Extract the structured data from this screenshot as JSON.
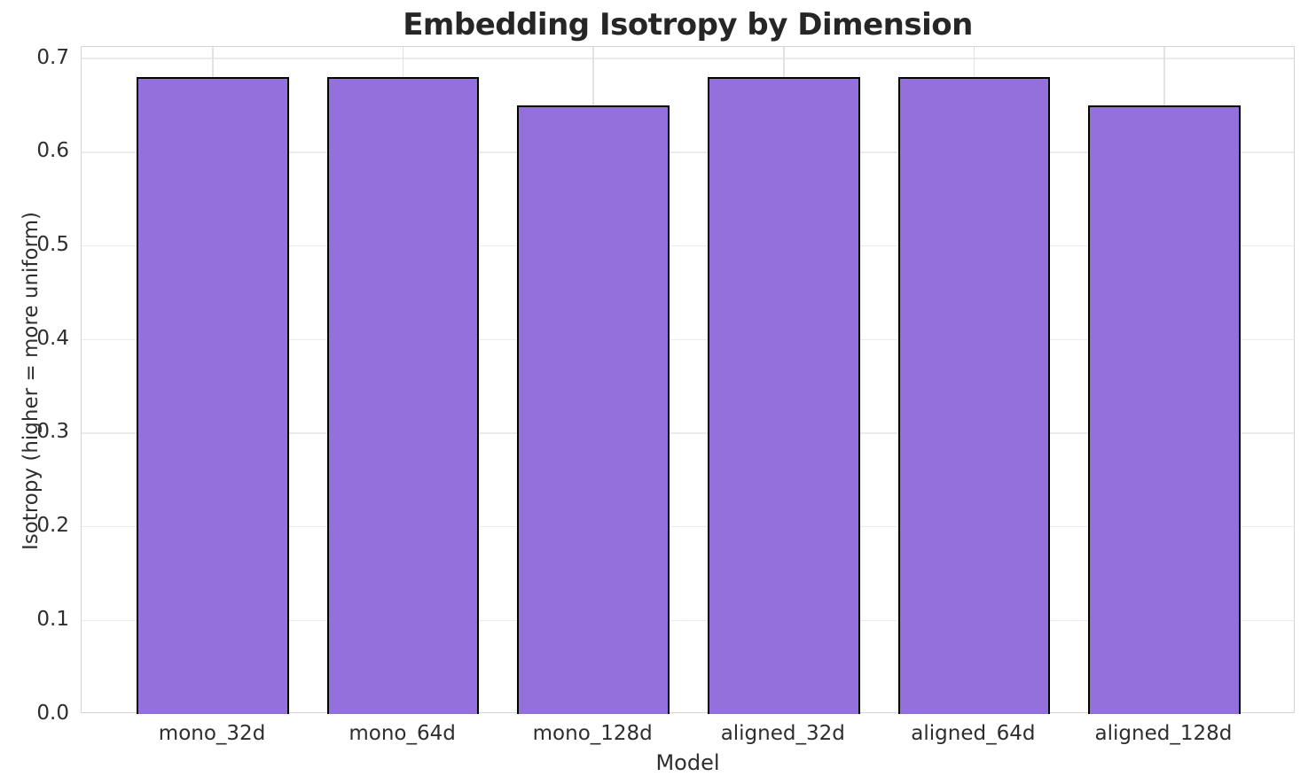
{
  "chart_data": {
    "type": "bar",
    "title": "Embedding Isotropy by Dimension",
    "xlabel": "Model",
    "ylabel": "Isotropy (higher = more uniform)",
    "categories": [
      "mono_32d",
      "mono_64d",
      "mono_128d",
      "aligned_32d",
      "aligned_64d",
      "aligned_128d"
    ],
    "values": [
      0.68,
      0.68,
      0.65,
      0.68,
      0.68,
      0.65
    ],
    "ylim": [
      0,
      0.7125
    ],
    "xlim": [
      -0.69,
      5.69
    ],
    "bar_width": 0.8,
    "yticks": [
      0.0,
      0.1,
      0.2,
      0.3,
      0.4,
      0.5,
      0.6,
      0.7
    ],
    "ytick_labels": [
      "0.0",
      "0.1",
      "0.2",
      "0.3",
      "0.4",
      "0.5",
      "0.6",
      "0.7"
    ],
    "grid": true,
    "legend": false,
    "colors": {
      "bar_fill": "#9370DB",
      "bar_edge": "#000000",
      "grid_h": "#ebebeb",
      "grid_v": "#e2e2e2",
      "spine": "#d4d4d4",
      "text": "#2e2e2e",
      "title_text": "#262626",
      "background": "#ffffff"
    }
  }
}
